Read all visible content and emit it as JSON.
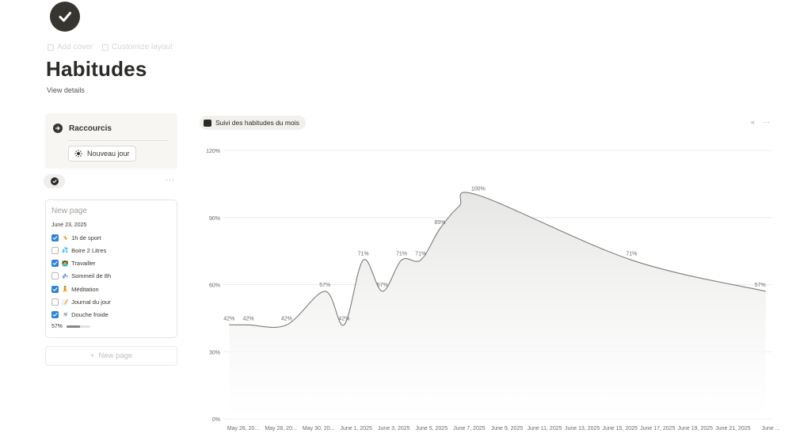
{
  "page": {
    "title": "Habitudes",
    "view_details": "View details",
    "add_cover": "Add cover",
    "customize_layout": "Customize layout",
    "icon": "check-circle-icon"
  },
  "shortcuts": {
    "title": "Raccourcis",
    "button_label": "Nouveau jour",
    "button_icon": "sun-icon"
  },
  "view": {
    "more": "···"
  },
  "card": {
    "title": "New page",
    "date": "June 23, 2025",
    "habits": [
      {
        "emoji": "🤸",
        "label": "1h de sport",
        "checked": true
      },
      {
        "emoji": "💦",
        "label": "Boire 2 Litres",
        "checked": false
      },
      {
        "emoji": "👨‍💻",
        "label": "Travailler",
        "checked": true
      },
      {
        "emoji": "💤",
        "label": "Sommeil de 8h",
        "checked": false
      },
      {
        "emoji": "🧘",
        "label": "Méditation",
        "checked": true
      },
      {
        "emoji": "📝",
        "label": "Journal du jour",
        "checked": false
      },
      {
        "emoji": "🚿",
        "label": "Douche froide",
        "checked": true
      }
    ],
    "progress_label": "57%",
    "progress_value": 0.57
  },
  "new_page": {
    "plus": "+",
    "label": "New page"
  },
  "chart_tab": {
    "label": "Suivi des habitudes du mois"
  },
  "chart_tools": {
    "collapse": "«",
    "more": "···"
  },
  "colors": {
    "checkbox_checked": "#2f83d6",
    "line": "#7d7c78",
    "area_top": "#e6e6e4",
    "text": "#37352f"
  },
  "chart_data": {
    "type": "area",
    "title": "",
    "xlabel": "",
    "ylabel": "",
    "ylim": [
      0,
      120
    ],
    "y_ticks": [
      "0%",
      "30%",
      "60%",
      "90%",
      "120%"
    ],
    "y_tick_values": [
      0,
      30,
      60,
      90,
      120
    ],
    "x_ticks": [
      "May 26, 20...",
      "May 28, 20...",
      "May 30, 20...",
      "June 1, 2025",
      "June 3, 2025",
      "June 5, 2025",
      "June 7, 2025",
      "June 9, 2025",
      "June 11, 2025",
      "June 13, 2025",
      "June 15, 2025",
      "June 17, 2025",
      "June 19, 2025",
      "June 21, 2025",
      "June ..."
    ],
    "x_range": [
      -0.3,
      28.3
    ],
    "grid": true,
    "legend": "none",
    "series": [
      {
        "x": [
          0,
          1,
          3,
          5,
          6,
          7,
          8,
          9,
          10,
          11,
          12,
          13,
          21,
          28
        ],
        "values": [
          42,
          42,
          42,
          57,
          42,
          71,
          57,
          71,
          71,
          85,
          95,
          100,
          71,
          57
        ],
        "labels": [
          "42%",
          "42%",
          "42%",
          "57%",
          "42%",
          "71%",
          "57%",
          "71%",
          "71%",
          "85%",
          "",
          "100%",
          "71%",
          "57%"
        ]
      }
    ]
  }
}
